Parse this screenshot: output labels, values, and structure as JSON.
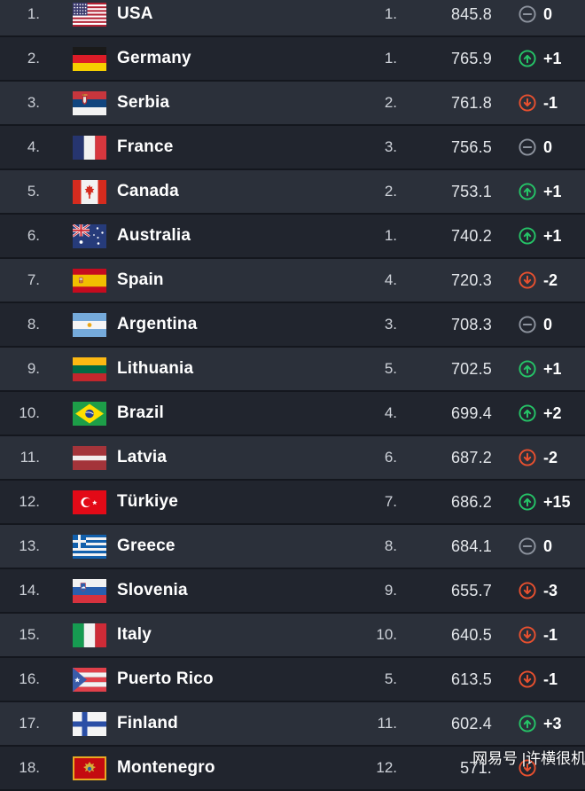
{
  "table": {
    "rows": [
      {
        "rank": "1.",
        "country": "USA",
        "flag": "us",
        "zone_rank": "1.",
        "points": "845.8",
        "change": "0",
        "trend": "same"
      },
      {
        "rank": "2.",
        "country": "Germany",
        "flag": "de",
        "zone_rank": "1.",
        "points": "765.9",
        "change": "+1",
        "trend": "up"
      },
      {
        "rank": "3.",
        "country": "Serbia",
        "flag": "rs",
        "zone_rank": "2.",
        "points": "761.8",
        "change": "-1",
        "trend": "down"
      },
      {
        "rank": "4.",
        "country": "France",
        "flag": "fr",
        "zone_rank": "3.",
        "points": "756.5",
        "change": "0",
        "trend": "same"
      },
      {
        "rank": "5.",
        "country": "Canada",
        "flag": "ca",
        "zone_rank": "2.",
        "points": "753.1",
        "change": "+1",
        "trend": "up"
      },
      {
        "rank": "6.",
        "country": "Australia",
        "flag": "au",
        "zone_rank": "1.",
        "points": "740.2",
        "change": "+1",
        "trend": "up"
      },
      {
        "rank": "7.",
        "country": "Spain",
        "flag": "es",
        "zone_rank": "4.",
        "points": "720.3",
        "change": "-2",
        "trend": "down"
      },
      {
        "rank": "8.",
        "country": "Argentina",
        "flag": "ar",
        "zone_rank": "3.",
        "points": "708.3",
        "change": "0",
        "trend": "same"
      },
      {
        "rank": "9.",
        "country": "Lithuania",
        "flag": "lt",
        "zone_rank": "5.",
        "points": "702.5",
        "change": "+1",
        "trend": "up"
      },
      {
        "rank": "10.",
        "country": "Brazil",
        "flag": "br",
        "zone_rank": "4.",
        "points": "699.4",
        "change": "+2",
        "trend": "up"
      },
      {
        "rank": "11.",
        "country": "Latvia",
        "flag": "lv",
        "zone_rank": "6.",
        "points": "687.2",
        "change": "-2",
        "trend": "down"
      },
      {
        "rank": "12.",
        "country": "Türkiye",
        "flag": "tr",
        "zone_rank": "7.",
        "points": "686.2",
        "change": "+15",
        "trend": "up"
      },
      {
        "rank": "13.",
        "country": "Greece",
        "flag": "gr",
        "zone_rank": "8.",
        "points": "684.1",
        "change": "0",
        "trend": "same"
      },
      {
        "rank": "14.",
        "country": "Slovenia",
        "flag": "si",
        "zone_rank": "9.",
        "points": "655.7",
        "change": "-3",
        "trend": "down"
      },
      {
        "rank": "15.",
        "country": "Italy",
        "flag": "it",
        "zone_rank": "10.",
        "points": "640.5",
        "change": "-1",
        "trend": "down"
      },
      {
        "rank": "16.",
        "country": "Puerto Rico",
        "flag": "pr",
        "zone_rank": "5.",
        "points": "613.5",
        "change": "-1",
        "trend": "down"
      },
      {
        "rank": "17.",
        "country": "Finland",
        "flag": "fi",
        "zone_rank": "11.",
        "points": "602.4",
        "change": "+3",
        "trend": "up"
      },
      {
        "rank": "18.",
        "country": "Montenegro",
        "flag": "me",
        "zone_rank": "12.",
        "points": "571.",
        "change": "",
        "trend": "down"
      }
    ]
  },
  "trend_colors": {
    "up": "#25c467",
    "down": "#e8502f",
    "same": "#8d939e"
  },
  "row_colors": {
    "odd": "#2b303a",
    "even": "#21252e"
  },
  "watermark": "网易号 |许横很机智"
}
